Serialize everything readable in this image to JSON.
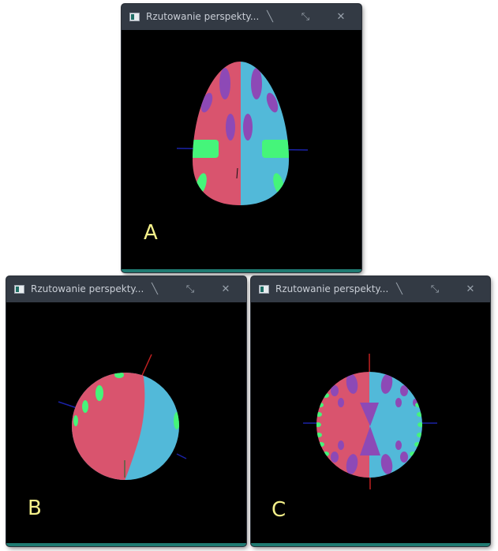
{
  "windows": [
    {
      "title": "Rzutowanie perspekty...",
      "label": "A"
    },
    {
      "title": "Rzutowanie perspekty...",
      "label": "B"
    },
    {
      "title": "Rzutowanie perspekty...",
      "label": "C"
    }
  ],
  "colors": {
    "titlebar": "#333a44",
    "background": "#000000",
    "accent_bar": "#1f7a71",
    "label": "#f4f08a",
    "red_half": "#d9546e",
    "blue_half": "#52b9d9",
    "purple_spots": "#8d49b6",
    "green_spots": "#45f57a"
  },
  "controls": [
    "minimize-icon",
    "maximize-icon",
    "close-icon"
  ]
}
